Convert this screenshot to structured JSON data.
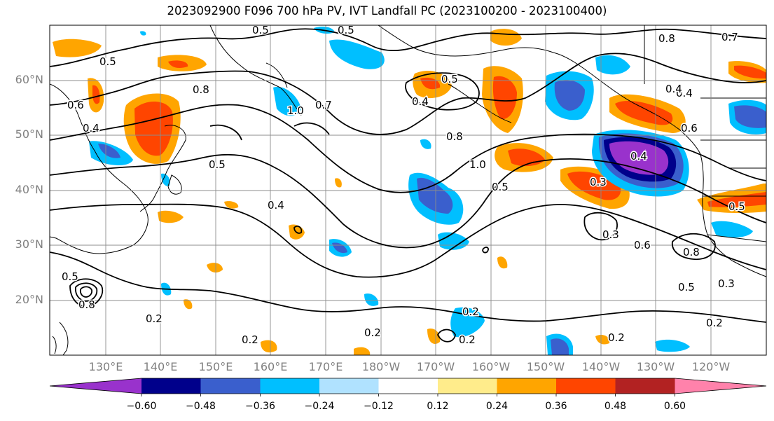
{
  "title": "2023092900 F096 700 hPa PV, IVT Landfall PC (2023100200 - 2023100400)",
  "latitude_labels": [
    "60°N",
    "50°N",
    "40°N",
    "30°N",
    "20°N"
  ],
  "longitude_labels": [
    "130°E",
    "140°E",
    "150°E",
    "160°E",
    "170°E",
    "180°W",
    "170°W",
    "160°W",
    "150°W",
    "140°W",
    "130°W",
    "120°W"
  ],
  "colorbar": {
    "tick_labels": [
      "−0.60",
      "−0.48",
      "−0.36",
      "−0.24",
      "−0.12",
      "0.12",
      "0.24",
      "0.36",
      "0.48",
      "0.60"
    ],
    "colors": [
      "#9932CC",
      "#00008B",
      "#3A5FCD",
      "#00BFFF",
      "#B0E2FF",
      "#FFFFFF",
      "#FFEC8B",
      "#FFA500",
      "#FF4500",
      "#B22222",
      "#FF82AB"
    ]
  },
  "contour_labels": [
    "0.5",
    "0.5",
    "0.5",
    "0.8",
    "0.7",
    "0.5",
    "0.8",
    "0.4",
    "0.4",
    "0.4",
    "1.0",
    "0.7",
    "0.6",
    "0.4",
    "0.5",
    "0.8",
    "1.0",
    "0.4",
    "0.6",
    "0.3",
    "0.5",
    "0.4",
    "0.5",
    "0.3",
    "0.6",
    "0.8",
    "0.5",
    "0.3",
    "0.5",
    "0.8",
    "0.2",
    "0.2",
    "0.2",
    "0.2",
    "0.2",
    "0.2",
    "0.2"
  ],
  "colors": {
    "land_line": "#000000",
    "grid": "#8c8c8c",
    "contour": "#000000",
    "axis_label": "#808080"
  }
}
